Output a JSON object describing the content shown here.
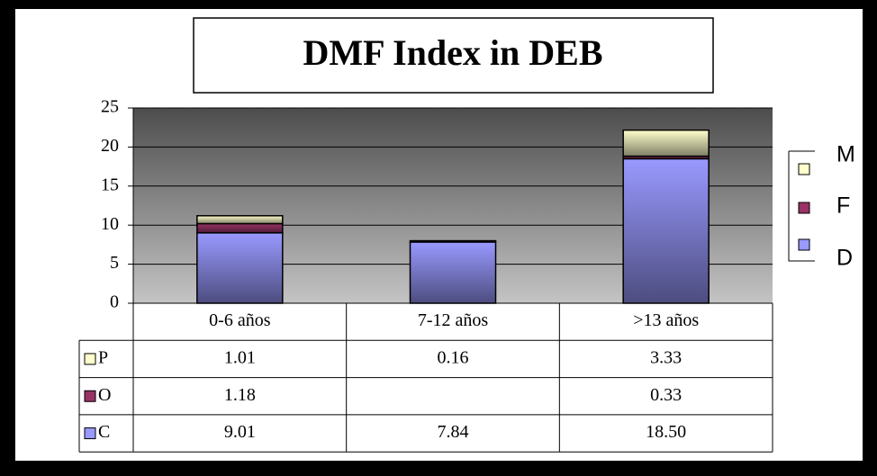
{
  "chart_data": {
    "type": "stacked_bar",
    "title": "DMF Index  in DEB",
    "categories": [
      "0-6 años",
      "7-12 años",
      ">13 años"
    ],
    "series": [
      {
        "name": "D",
        "table_label": "C",
        "color": "#9999ff",
        "values": [
          9.01,
          7.84,
          18.5
        ],
        "value_labels": [
          "9.01",
          "7.84",
          "18.50"
        ]
      },
      {
        "name": "F",
        "table_label": "O",
        "color": "#993366",
        "values": [
          1.18,
          null,
          0.33
        ],
        "value_labels": [
          "1.18",
          null,
          "0.33"
        ]
      },
      {
        "name": "M",
        "table_label": "P",
        "color": "#ffffcc",
        "values": [
          1.01,
          0.16,
          3.33
        ],
        "value_labels": [
          "1.01",
          "0.16",
          "3.33"
        ]
      }
    ],
    "ylim": [
      0,
      25
    ],
    "yticks": [
      0,
      5,
      10,
      15,
      20,
      25
    ],
    "grid": true,
    "legend": "right"
  }
}
